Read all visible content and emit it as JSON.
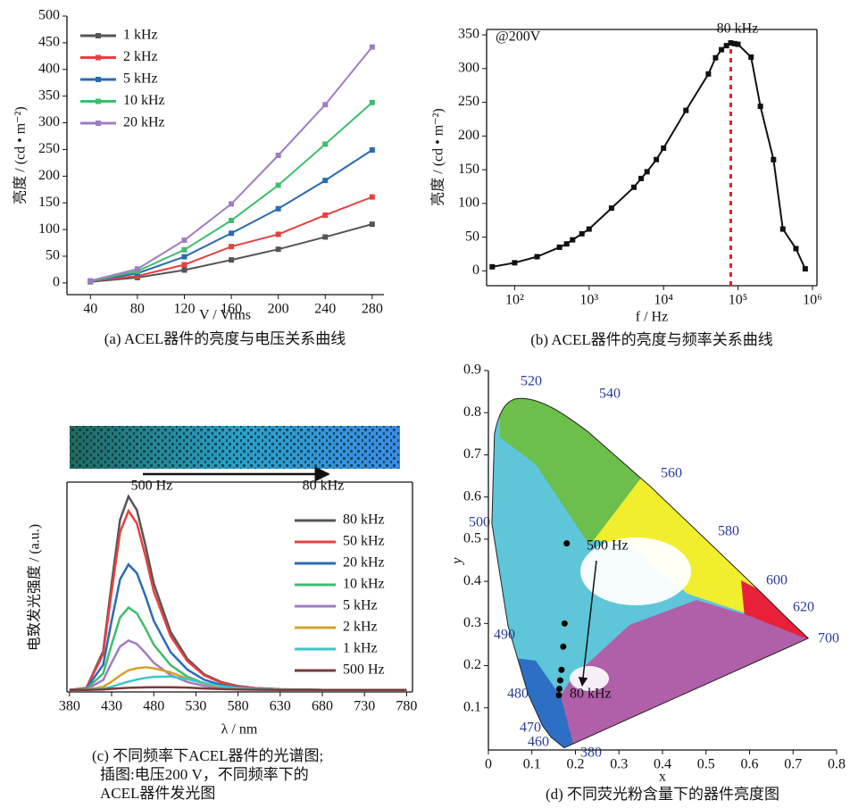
{
  "chart_data": [
    {
      "type": "line",
      "ylabel": "亮度 / (cd • m⁻²)",
      "xlabel": "V / Vrms",
      "caption": "(a) ACEL器件的亮度与电压关系曲线",
      "x": [
        40,
        80,
        120,
        160,
        200,
        240,
        280
      ],
      "xlim": [
        20,
        290
      ],
      "xticks": [
        40,
        80,
        120,
        160,
        200,
        240,
        280
      ],
      "ylim": [
        -22,
        500
      ],
      "yticks": [
        0,
        50,
        100,
        150,
        200,
        250,
        300,
        350,
        400,
        450,
        500
      ],
      "markers": true,
      "legend": "upper left",
      "series": [
        {
          "name": "1 kHz",
          "color": "#555555",
          "values": [
            2,
            10,
            24,
            43,
            63,
            86,
            110
          ]
        },
        {
          "name": "2 kHz",
          "color": "#e8403f",
          "values": [
            3,
            13,
            34,
            68,
            91,
            127,
            161
          ]
        },
        {
          "name": "5 kHz",
          "color": "#2a6bb5",
          "values": [
            3,
            18,
            49,
            93,
            139,
            192,
            249
          ]
        },
        {
          "name": "10 kHz",
          "color": "#3dbd6e",
          "values": [
            3,
            22,
            62,
            117,
            183,
            260,
            338
          ]
        },
        {
          "name": "20 kHz",
          "color": "#a07cc5",
          "values": [
            4,
            26,
            80,
            148,
            239,
            334,
            442
          ]
        }
      ]
    },
    {
      "type": "line",
      "ylabel": "亮度 / (cd • m⁻²)",
      "xlabel": "f / Hz",
      "caption": "(b) ACEL器件的亮度与频率关系曲线",
      "annotation": "@200V",
      "peak_label": "80 kHz",
      "vline": 80000,
      "vline_color": "#e8202a",
      "xscale": "log",
      "xlim": [
        42,
        1150000
      ],
      "xticks": [
        {
          "value": 100,
          "label": "10²"
        },
        {
          "value": 1000,
          "label": "10³"
        },
        {
          "value": 10000,
          "label": "10⁴"
        },
        {
          "value": 100000,
          "label": "10⁵"
        },
        {
          "value": 1000000,
          "label": "10⁶"
        }
      ],
      "ylim": [
        -22,
        358
      ],
      "yticks": [
        0,
        50,
        100,
        150,
        200,
        250,
        300,
        350
      ],
      "markers": true,
      "color": "#111111",
      "x": [
        50,
        100,
        200,
        400,
        500,
        600,
        800,
        1000,
        2000,
        4000,
        5000,
        6000,
        8000,
        10000,
        20000,
        40000,
        50000,
        60000,
        70000,
        80000,
        90000,
        100000,
        150000,
        200000,
        300000,
        400000,
        600000,
        800000
      ],
      "values": [
        6,
        12,
        21,
        35,
        40,
        46,
        55,
        62,
        93,
        124,
        137,
        147,
        165,
        182,
        238,
        292,
        316,
        328,
        334,
        338,
        337,
        336,
        317,
        244,
        165,
        62,
        33,
        3
      ]
    },
    {
      "type": "line",
      "ylabel": "电致发光强度 / (a.u.)",
      "xlabel": "λ / nm",
      "caption": [
        "(c) 不同频率下ACEL器件的光谱图;",
        "插图:电压200 V，不同频率下的",
        "ACEL器件发光图"
      ],
      "inset_labels": [
        "500 Hz",
        "80 kHz"
      ],
      "x": [
        380,
        400,
        420,
        430,
        440,
        450,
        460,
        470,
        480,
        500,
        520,
        540,
        560,
        580,
        600,
        630,
        680,
        730,
        780
      ],
      "xlim": [
        377,
        787
      ],
      "xticks": [
        380,
        430,
        480,
        530,
        580,
        630,
        680,
        730,
        780
      ],
      "ylim": [
        -1,
        101
      ],
      "markers": false,
      "legend": "right",
      "series": [
        {
          "name": "80 kHz",
          "color": "#555555",
          "values": [
            0,
            0.9,
            18.8,
            51.7,
            82.7,
            94,
            87.4,
            70.5,
            51.7,
            28.2,
            15,
            7.5,
            3.8,
            1.9,
            0.9,
            0.3,
            0,
            0,
            0
          ]
        },
        {
          "name": "50 kHz",
          "color": "#e8403f",
          "values": [
            0,
            0.9,
            17.4,
            47.9,
            76.6,
            87,
            80.9,
            65.3,
            47.9,
            26.1,
            13.9,
            7,
            3.5,
            1.7,
            0.9,
            0.3,
            0,
            0,
            0
          ]
        },
        {
          "name": "20 kHz",
          "color": "#2a6bb5",
          "values": [
            0,
            0.6,
            12.2,
            33.6,
            53.7,
            61,
            56.7,
            45.8,
            33.6,
            18.3,
            9.8,
            4.9,
            2.4,
            1.2,
            0.6,
            0.2,
            0,
            0,
            0
          ]
        },
        {
          "name": "10 kHz",
          "color": "#3dbd6e",
          "values": [
            0,
            0.4,
            8,
            22,
            35.2,
            40,
            37.2,
            30,
            22,
            12,
            6.4,
            3.2,
            1.6,
            0.8,
            0.4,
            0.1,
            0,
            0,
            0
          ]
        },
        {
          "name": "5 kHz",
          "color": "#a07cc5",
          "values": [
            0,
            0.2,
            4.8,
            13.2,
            21.1,
            24,
            22.3,
            18,
            13.2,
            7.2,
            3.8,
            1.9,
            1,
            0.5,
            0.2,
            0.1,
            0,
            0,
            0
          ]
        },
        {
          "name": "2 kHz",
          "color": "#d4a12a",
          "values": [
            0,
            0.1,
            1.5,
            4,
            7,
            9.5,
            10.5,
            11,
            10.5,
            8.5,
            5.5,
            3,
            1.5,
            0.7,
            0.3,
            0.1,
            0,
            0,
            0
          ]
        },
        {
          "name": "1 kHz",
          "color": "#3cc6c9",
          "values": [
            0,
            0,
            0.6,
            1.5,
            2.8,
            4,
            5,
            5.8,
            6.3,
            6.5,
            5.2,
            3.4,
            1.8,
            0.9,
            0.4,
            0.1,
            0,
            0,
            0
          ]
        },
        {
          "name": "500 Hz",
          "color": "#7a3b3b",
          "values": [
            0,
            0,
            0.2,
            0.5,
            0.8,
            1,
            1.1,
            1.2,
            1.3,
            1.3,
            1.1,
            0.7,
            0.4,
            0.2,
            0.1,
            0,
            0,
            0,
            0
          ]
        }
      ]
    },
    {
      "type": "scatter",
      "ylabel": "y",
      "xlabel": "x",
      "caption": "(d) 不同荧光粉含量下的器件亮度图",
      "annotations": [
        "500 Hz",
        "80 kHz"
      ],
      "locus_labels": [
        520,
        540,
        560,
        580,
        600,
        620,
        700,
        500,
        490,
        480,
        470,
        460,
        380
      ],
      "xlim": [
        0,
        0.8
      ],
      "xticks": [
        0,
        0.1,
        0.2,
        0.3,
        0.4,
        0.5,
        0.6,
        0.7,
        0.8
      ],
      "ylim": [
        0,
        0.9
      ],
      "yticks": [
        0.1,
        0.2,
        0.3,
        0.4,
        0.5,
        0.6,
        0.7,
        0.8,
        0.9
      ],
      "color": "#000000",
      "x": [
        0.18,
        0.175,
        0.172,
        0.168,
        0.165,
        0.163,
        0.162
      ],
      "values": [
        0.49,
        0.3,
        0.245,
        0.19,
        0.165,
        0.145,
        0.13
      ]
    }
  ]
}
